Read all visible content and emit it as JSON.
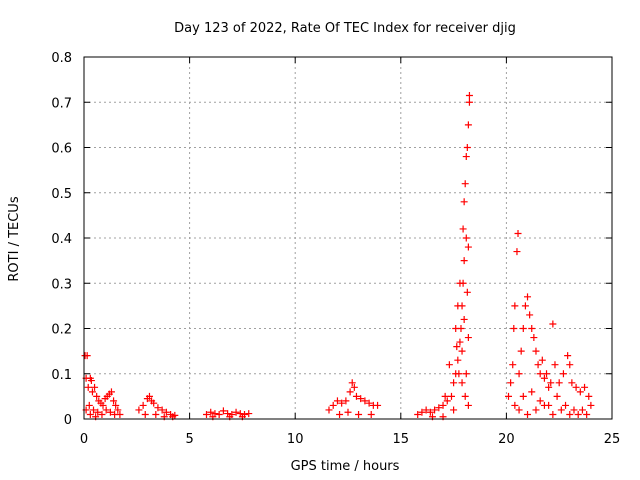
{
  "chart_data": {
    "type": "scatter",
    "title": "Day 123 of 2022, Rate Of TEC Index for receiver djig",
    "xlabel": "GPS time / hours",
    "ylabel": "ROTI / TECUs",
    "xlim": [
      0,
      25
    ],
    "ylim": [
      0,
      0.8
    ],
    "x_ticks": [
      0,
      5,
      10,
      15,
      20,
      25
    ],
    "y_ticks": [
      0,
      0.1,
      0.2,
      0.3,
      0.4,
      0.5,
      0.6,
      0.7,
      0.8
    ],
    "x_tick_labels": [
      "0",
      "5",
      "10",
      "15",
      "20",
      "25"
    ],
    "y_tick_labels": [
      "0",
      "0.1",
      "0.2",
      "0.3",
      "0.4",
      "0.5",
      "0.6",
      "0.7",
      "0.8"
    ],
    "grid": true,
    "marker": "+",
    "color": "#ff0000",
    "series": [
      {
        "name": "ROTI",
        "points": [
          [
            0.05,
            0.14
          ],
          [
            0.15,
            0.14
          ],
          [
            0.1,
            0.09
          ],
          [
            0.2,
            0.07
          ],
          [
            0.3,
            0.09
          ],
          [
            0.35,
            0.085
          ],
          [
            0.4,
            0.06
          ],
          [
            0.5,
            0.07
          ],
          [
            0.6,
            0.05
          ],
          [
            0.7,
            0.04
          ],
          [
            0.8,
            0.035
          ],
          [
            0.9,
            0.03
          ],
          [
            1.0,
            0.045
          ],
          [
            1.1,
            0.05
          ],
          [
            1.2,
            0.055
          ],
          [
            1.3,
            0.06
          ],
          [
            1.4,
            0.04
          ],
          [
            1.5,
            0.03
          ],
          [
            1.6,
            0.02
          ],
          [
            1.7,
            0.01
          ],
          [
            0.25,
            0.03
          ],
          [
            0.45,
            0.02
          ],
          [
            0.65,
            0.015
          ],
          [
            0.85,
            0.01
          ],
          [
            1.05,
            0.02
          ],
          [
            1.25,
            0.015
          ],
          [
            1.45,
            0.01
          ],
          [
            0.1,
            0.02
          ],
          [
            0.3,
            0.01
          ],
          [
            0.55,
            0.005
          ],
          [
            2.6,
            0.02
          ],
          [
            2.8,
            0.03
          ],
          [
            3.0,
            0.045
          ],
          [
            3.1,
            0.05
          ],
          [
            3.2,
            0.04
          ],
          [
            3.3,
            0.035
          ],
          [
            3.5,
            0.025
          ],
          [
            3.7,
            0.02
          ],
          [
            3.9,
            0.015
          ],
          [
            4.1,
            0.01
          ],
          [
            4.3,
            0.008
          ],
          [
            2.9,
            0.01
          ],
          [
            3.4,
            0.01
          ],
          [
            3.8,
            0.005
          ],
          [
            4.2,
            0.005
          ],
          [
            5.8,
            0.01
          ],
          [
            6.0,
            0.015
          ],
          [
            6.2,
            0.012
          ],
          [
            6.4,
            0.01
          ],
          [
            6.6,
            0.018
          ],
          [
            6.8,
            0.012
          ],
          [
            7.0,
            0.01
          ],
          [
            7.2,
            0.015
          ],
          [
            7.4,
            0.012
          ],
          [
            7.6,
            0.01
          ],
          [
            7.8,
            0.012
          ],
          [
            6.1,
            0.005
          ],
          [
            6.9,
            0.005
          ],
          [
            7.5,
            0.005
          ],
          [
            11.6,
            0.02
          ],
          [
            11.8,
            0.03
          ],
          [
            12.0,
            0.04
          ],
          [
            12.2,
            0.035
          ],
          [
            12.4,
            0.04
          ],
          [
            12.6,
            0.06
          ],
          [
            12.7,
            0.08
          ],
          [
            12.8,
            0.07
          ],
          [
            12.9,
            0.05
          ],
          [
            13.1,
            0.045
          ],
          [
            13.3,
            0.04
          ],
          [
            13.5,
            0.035
          ],
          [
            13.7,
            0.03
          ],
          [
            13.9,
            0.03
          ],
          [
            12.1,
            0.01
          ],
          [
            12.5,
            0.015
          ],
          [
            13.0,
            0.01
          ],
          [
            13.6,
            0.01
          ],
          [
            15.8,
            0.01
          ],
          [
            16.0,
            0.015
          ],
          [
            16.2,
            0.02
          ],
          [
            16.4,
            0.015
          ],
          [
            16.6,
            0.02
          ],
          [
            16.8,
            0.025
          ],
          [
            17.0,
            0.03
          ],
          [
            17.2,
            0.04
          ],
          [
            17.4,
            0.05
          ],
          [
            17.5,
            0.08
          ],
          [
            17.6,
            0.1
          ],
          [
            17.7,
            0.13
          ],
          [
            17.8,
            0.17
          ],
          [
            17.85,
            0.2
          ],
          [
            17.9,
            0.25
          ],
          [
            17.95,
            0.3
          ],
          [
            18.0,
            0.35
          ],
          [
            18.1,
            0.4
          ],
          [
            18.2,
            0.38
          ],
          [
            18.05,
            0.52
          ],
          [
            18.1,
            0.58
          ],
          [
            18.15,
            0.6
          ],
          [
            18.2,
            0.65
          ],
          [
            18.25,
            0.7
          ],
          [
            18.25,
            0.715
          ],
          [
            18.0,
            0.48
          ],
          [
            17.95,
            0.42
          ],
          [
            17.6,
            0.2
          ],
          [
            17.7,
            0.25
          ],
          [
            17.8,
            0.3
          ],
          [
            17.65,
            0.16
          ],
          [
            17.75,
            0.1
          ],
          [
            17.3,
            0.12
          ],
          [
            17.1,
            0.05
          ],
          [
            17.9,
            0.15
          ],
          [
            18.0,
            0.22
          ],
          [
            18.15,
            0.28
          ],
          [
            18.2,
            0.18
          ],
          [
            18.1,
            0.1
          ],
          [
            18.05,
            0.05
          ],
          [
            17.5,
            0.02
          ],
          [
            16.5,
            0.005
          ],
          [
            17.0,
            0.005
          ],
          [
            18.2,
            0.03
          ],
          [
            17.9,
            0.08
          ],
          [
            20.1,
            0.05
          ],
          [
            20.2,
            0.08
          ],
          [
            20.3,
            0.12
          ],
          [
            20.35,
            0.2
          ],
          [
            20.4,
            0.25
          ],
          [
            20.5,
            0.37
          ],
          [
            20.55,
            0.41
          ],
          [
            20.6,
            0.1
          ],
          [
            20.7,
            0.15
          ],
          [
            20.8,
            0.2
          ],
          [
            20.9,
            0.25
          ],
          [
            21.0,
            0.27
          ],
          [
            21.1,
            0.23
          ],
          [
            21.2,
            0.2
          ],
          [
            21.3,
            0.18
          ],
          [
            21.4,
            0.15
          ],
          [
            21.5,
            0.12
          ],
          [
            21.6,
            0.1
          ],
          [
            21.7,
            0.13
          ],
          [
            21.8,
            0.09
          ],
          [
            21.9,
            0.1
          ],
          [
            22.0,
            0.07
          ],
          [
            22.1,
            0.08
          ],
          [
            22.2,
            0.21
          ],
          [
            22.3,
            0.12
          ],
          [
            22.5,
            0.08
          ],
          [
            22.7,
            0.1
          ],
          [
            22.9,
            0.14
          ],
          [
            23.0,
            0.12
          ],
          [
            23.1,
            0.08
          ],
          [
            23.3,
            0.07
          ],
          [
            23.5,
            0.06
          ],
          [
            23.7,
            0.07
          ],
          [
            23.9,
            0.05
          ],
          [
            20.4,
            0.03
          ],
          [
            20.8,
            0.05
          ],
          [
            21.2,
            0.06
          ],
          [
            21.6,
            0.04
          ],
          [
            22.0,
            0.03
          ],
          [
            22.4,
            0.05
          ],
          [
            22.8,
            0.03
          ],
          [
            23.2,
            0.02
          ],
          [
            23.6,
            0.02
          ],
          [
            24.0,
            0.03
          ],
          [
            20.6,
            0.02
          ],
          [
            21.0,
            0.01
          ],
          [
            21.4,
            0.02
          ],
          [
            21.8,
            0.03
          ],
          [
            22.2,
            0.01
          ],
          [
            22.6,
            0.02
          ],
          [
            23.0,
            0.01
          ],
          [
            23.4,
            0.01
          ],
          [
            23.8,
            0.01
          ]
        ]
      }
    ]
  }
}
